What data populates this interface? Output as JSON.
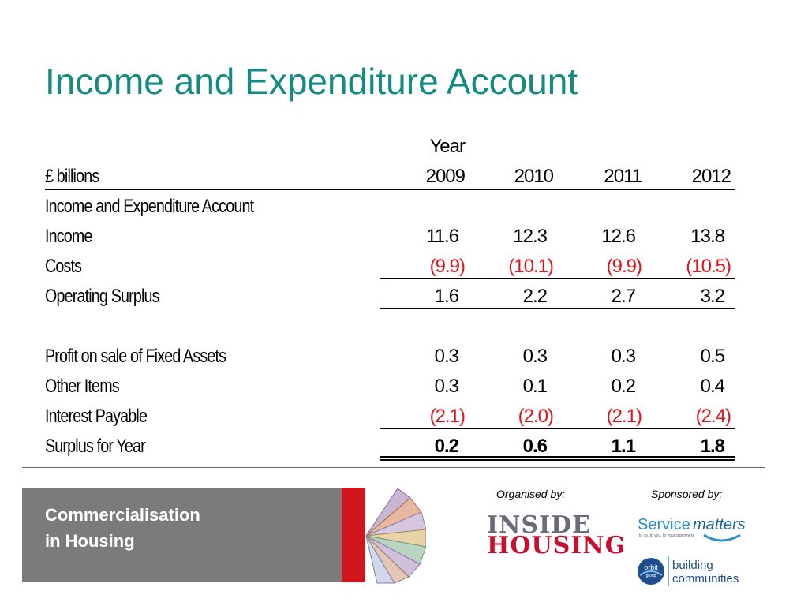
{
  "title": "Income and Expenditure Account",
  "table": {
    "year_header": "Year",
    "unit_label": "£ billions",
    "years": [
      "2009",
      "2010",
      "2011",
      "2012"
    ],
    "section_label": "Income and Expenditure Account",
    "rows": [
      {
        "label": "Income",
        "values": [
          "11.6",
          "12.3",
          "12.6",
          "13.8"
        ]
      },
      {
        "label": "Costs",
        "values": [
          "(9.9)",
          "(10.1)",
          "(9.9)",
          "(10.5)"
        ]
      },
      {
        "label": "Operating Surplus",
        "values": [
          "1.6",
          "2.2",
          "2.7",
          "3.2"
        ]
      },
      {
        "label": "Profit on sale of Fixed Assets",
        "values": [
          "0.3",
          "0.3",
          "0.3",
          "0.5"
        ]
      },
      {
        "label": "Other Items",
        "values": [
          "0.3",
          "0.1",
          "0.2",
          "0.4"
        ]
      },
      {
        "label": "Interest Payable",
        "values": [
          "(2.1)",
          "(2.0)",
          "(2.1)",
          "(2.4)"
        ]
      },
      {
        "label": "Surplus for Year",
        "values": [
          "0.2",
          "0.6",
          "1.1",
          "1.8"
        ]
      }
    ]
  },
  "footer": {
    "banner_line1": "Commercialisation",
    "banner_line2": "in Housing",
    "organised_by": "Organised by:",
    "sponsored_by": "Sponsored by:",
    "inside_housing_line1": "INSIDE",
    "inside_housing_line2": "HOUSING",
    "service_matters_a": "Service",
    "service_matters_b": "matters",
    "service_matters_tagline": "to us, to you, to your customers",
    "orbit_badge": "orbit",
    "orbit_sub": "group",
    "orbit_line1": "building",
    "orbit_line2": "communities"
  },
  "colors": {
    "title": "#138a82",
    "negative": "#e2141b",
    "banner": "#7b7b7b",
    "accent_red": "#d1161b"
  }
}
